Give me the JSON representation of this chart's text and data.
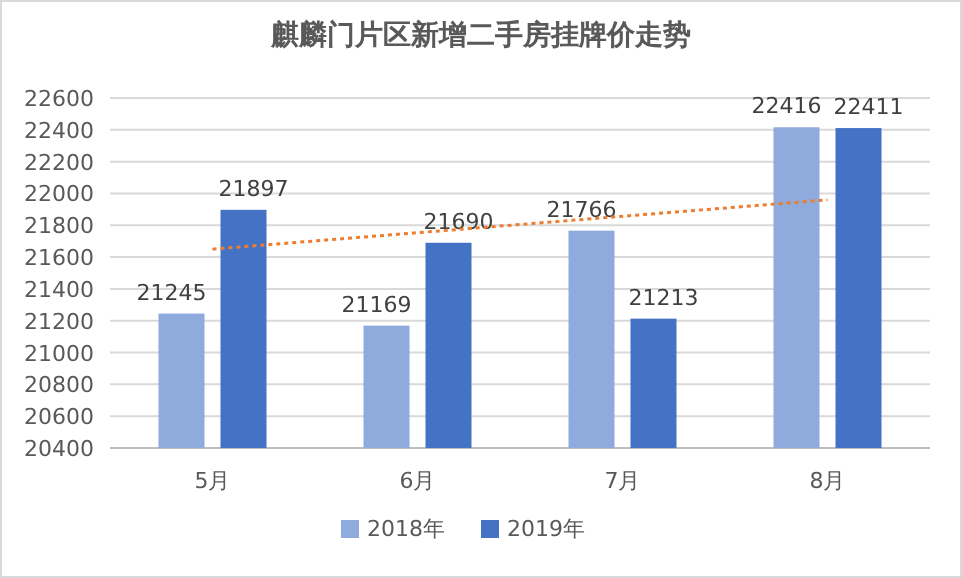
{
  "chart_data": {
    "type": "bar",
    "title": "麒麟门片区新增二手房挂牌价走势",
    "categories": [
      "5月",
      "6月",
      "7月",
      "8月"
    ],
    "series": [
      {
        "name": "2018年",
        "color": "#8faadc",
        "values": [
          21245,
          21169,
          21766,
          22416
        ],
        "value_labels": [
          "21245",
          "21169",
          "21766",
          "22416"
        ]
      },
      {
        "name": "2019年",
        "color": "#4472c4",
        "values": [
          21897,
          21690,
          21213,
          22411
        ],
        "value_labels": [
          "21897",
          "21690",
          "21213",
          "22411"
        ]
      },
      {
        "type": "line",
        "color": "#ed7d31",
        "line_style": "dotted",
        "x": [
          "5月",
          "8月"
        ],
        "values": [
          21650,
          21960
        ]
      }
    ],
    "ylim": [
      20400,
      22600
    ],
    "yticks": [
      20400,
      20600,
      20800,
      21000,
      21200,
      21400,
      21600,
      21800,
      22000,
      22200,
      22400,
      22600
    ],
    "grid": "y",
    "legend": "bottom"
  }
}
